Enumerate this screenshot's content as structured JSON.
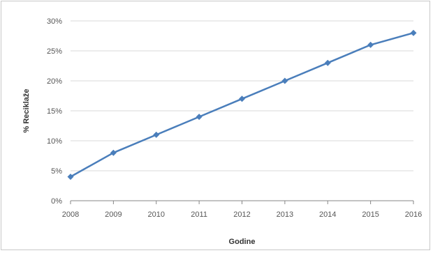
{
  "chart_data": {
    "type": "line",
    "title": "",
    "xlabel": "Godine",
    "ylabel": "% Reciklaže",
    "categories": [
      "2008",
      "2009",
      "2010",
      "2011",
      "2012",
      "2013",
      "2014",
      "2015",
      "2016"
    ],
    "series": [
      {
        "values": [
          4,
          8,
          11,
          14,
          17,
          20,
          23,
          26,
          28
        ],
        "color": "#4a7ebb"
      }
    ],
    "ylim": [
      0,
      30
    ],
    "y_ticks": [
      "0%",
      "5%",
      "10%",
      "15%",
      "20%",
      "25%",
      "30%"
    ],
    "y_tick_values": [
      0,
      5,
      10,
      15,
      20,
      25,
      30
    ],
    "grid": true,
    "gridline_color": "#d9d9d9",
    "axis_color": "#868686",
    "legend": "none"
  }
}
